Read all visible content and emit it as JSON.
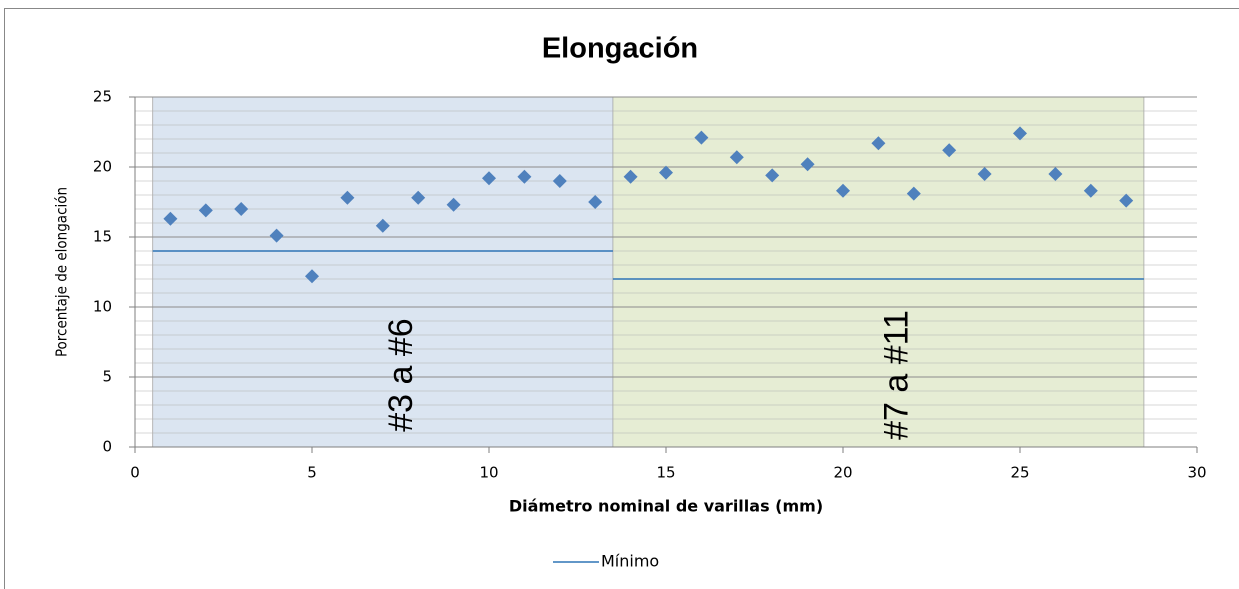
{
  "chart_data": {
    "type": "scatter",
    "title": "Elongación",
    "x_label": "Diámetro nominal de varillas (mm)",
    "y_label": "Porcentaje de elongación",
    "xlim": [
      0,
      30
    ],
    "xticks": [
      0,
      5,
      10,
      15,
      20,
      25,
      30
    ],
    "ylim": [
      0,
      25
    ],
    "yticks": [
      0,
      5,
      10,
      15,
      20,
      25
    ],
    "yminor": 1,
    "grid": true,
    "legend": "bottom",
    "regions": [
      {
        "label": "#3 a #6",
        "color": "#dbe5f1",
        "x": [
          0.5,
          13.5
        ]
      },
      {
        "label": "#7 a #11",
        "color": "#e6edd4",
        "x": [
          13.5,
          28.5
        ]
      }
    ],
    "series": [
      {
        "color": "#4f81bd",
        "marker": "diamond",
        "x": [
          1,
          2,
          3,
          4,
          5,
          6,
          7,
          8,
          9,
          10,
          11,
          12,
          13,
          14,
          15,
          16,
          17,
          18,
          19,
          20,
          21,
          22,
          23,
          24,
          25,
          26,
          27,
          28
        ],
        "values": [
          16.3,
          16.9,
          17.0,
          15.1,
          12.2,
          17.8,
          15.8,
          17.8,
          17.3,
          19.2,
          19.3,
          19.0,
          17.5,
          19.3,
          19.6,
          22.1,
          20.7,
          19.4,
          20.2,
          18.3,
          21.7,
          18.1,
          21.2,
          19.5,
          22.4,
          19.5,
          18.3,
          17.6
        ]
      },
      {
        "name": "Mínimo",
        "color": "#2e75b6",
        "marker": "line",
        "x": [
          0.5,
          13.5,
          13.5,
          13.5,
          28.5
        ],
        "values": [
          14,
          14,
          null,
          12,
          12
        ]
      }
    ]
  }
}
